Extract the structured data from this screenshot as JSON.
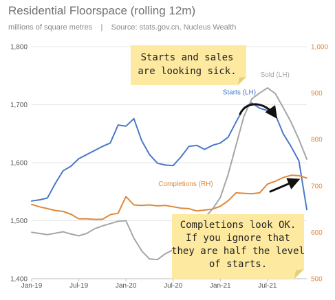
{
  "header": {
    "title": "Residential Floorspace (rolling 12m)",
    "subtitle_unit": "millions of square metres",
    "subtitle_sep": "|",
    "subtitle_source": "Source: stats.gov.cn, Nucleus Wealth"
  },
  "annotations": {
    "note_top": [
      "Starts and sales",
      "are looking sick."
    ],
    "note_bottom": [
      "Completions look OK.",
      "If you ignore that",
      "they are half the level",
      "of starts."
    ],
    "note_color": "#fde9a0",
    "arrow_color": "#111111"
  },
  "chart_data": {
    "type": "line",
    "x_tick_labels": [
      "Jan-19",
      "Jul-19",
      "Jan-20",
      "Jul-20",
      "Jan-21",
      "Jul-21"
    ],
    "x_tick_months": [
      0,
      6,
      12,
      18,
      24,
      30
    ],
    "x_range_months": [
      0,
      35
    ],
    "y_left": {
      "ticks": [
        "1,400",
        "1,500",
        "1,600",
        "1,700",
        "1,800"
      ],
      "ylim": [
        1400,
        1800
      ]
    },
    "y_right": {
      "ticks": [
        "500",
        "600",
        "700",
        "800",
        "900",
        "1,000"
      ],
      "ylim": [
        500,
        1000
      ]
    },
    "grid": "horizontal",
    "series": [
      {
        "name": "Starts (LH)",
        "axis": "left",
        "color": "#4a78c8",
        "months": [
          0,
          1,
          2,
          3,
          4,
          5,
          6,
          7,
          8,
          9,
          10,
          11,
          12,
          13,
          14,
          15,
          16,
          17,
          18,
          19,
          20,
          21,
          22,
          23,
          24,
          25,
          26,
          27,
          28,
          29,
          30,
          31,
          32,
          33,
          34,
          35
        ],
        "values": [
          1534,
          1536,
          1539,
          1564,
          1586,
          1594,
          1607,
          1614,
          1621,
          1628,
          1634,
          1665,
          1663,
          1676,
          1638,
          1614,
          1599,
          1596,
          1595,
          1610,
          1628,
          1630,
          1623,
          1630,
          1634,
          1644,
          1670,
          1695,
          1703,
          1694,
          1690,
          1683,
          1650,
          1628,
          1603,
          1519
        ]
      },
      {
        "name": "Sold (LH)",
        "axis": "left",
        "color": "#a5a5a5",
        "months": [
          0,
          2,
          4,
          5,
          6,
          7,
          8,
          9,
          10,
          11,
          12,
          13,
          14,
          15,
          16,
          17,
          18,
          19,
          20,
          21,
          22,
          23,
          24,
          25,
          26,
          27,
          28,
          29,
          30,
          31,
          32,
          33,
          34,
          35
        ],
        "values": [
          1480,
          1476,
          1481,
          1477,
          1474,
          1478,
          1486,
          1491,
          1495,
          1499,
          1500,
          1470,
          1448,
          1434,
          1433,
          1443,
          1450,
          1470,
          1490,
          1500,
          1505,
          1520,
          1540,
          1580,
          1630,
          1680,
          1710,
          1720,
          1729,
          1719,
          1695,
          1670,
          1640,
          1606
        ]
      },
      {
        "name": "Completions (RH)",
        "axis": "right",
        "color": "#e0873a",
        "months": [
          0,
          1,
          2,
          3,
          4,
          5,
          6,
          7,
          8,
          9,
          10,
          11,
          12,
          13,
          14,
          15,
          16,
          17,
          18,
          19,
          20,
          21,
          22,
          23,
          24,
          25,
          26,
          27,
          28,
          29,
          30,
          31,
          32,
          33,
          34,
          35
        ],
        "values": [
          660,
          655,
          651,
          647,
          645,
          639,
          629,
          629,
          628,
          628,
          638,
          641,
          677,
          659,
          658,
          659,
          657,
          658,
          655,
          652,
          651,
          646,
          648,
          650,
          656,
          668,
          685,
          684,
          683,
          685,
          704,
          710,
          718,
          723,
          722,
          717
        ]
      }
    ]
  }
}
